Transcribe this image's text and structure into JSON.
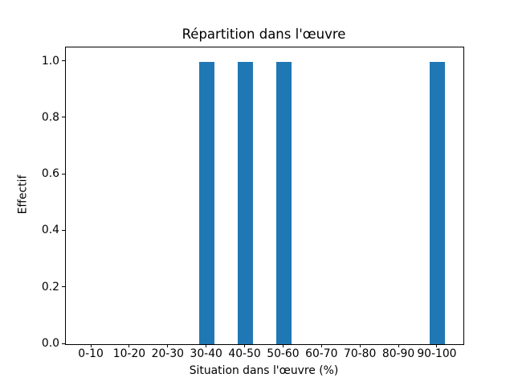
{
  "chart_data": {
    "type": "bar",
    "title": "Répartition dans l'œuvre",
    "xlabel": "Situation dans l'œuvre (%)",
    "ylabel": "Effectif",
    "categories": [
      "0-10",
      "10-20",
      "20-30",
      "30-40",
      "40-50",
      "50-60",
      "60-70",
      "70-80",
      "80-90",
      "90-100"
    ],
    "values": [
      0,
      0,
      0,
      1,
      1,
      1,
      0,
      0,
      0,
      1
    ],
    "ytick_labels": [
      "0.0",
      "0.2",
      "0.4",
      "0.6",
      "0.8",
      "1.0"
    ],
    "ytick_values": [
      0.0,
      0.2,
      0.4,
      0.6,
      0.8,
      1.0
    ],
    "ylim": [
      0,
      1.05
    ],
    "x_margin": 0.67,
    "bar_width_fraction": 0.4,
    "bar_color": "#1f77b4",
    "axis_color": "#000000",
    "background_color": "#ffffff",
    "grid": false,
    "legend": null
  }
}
